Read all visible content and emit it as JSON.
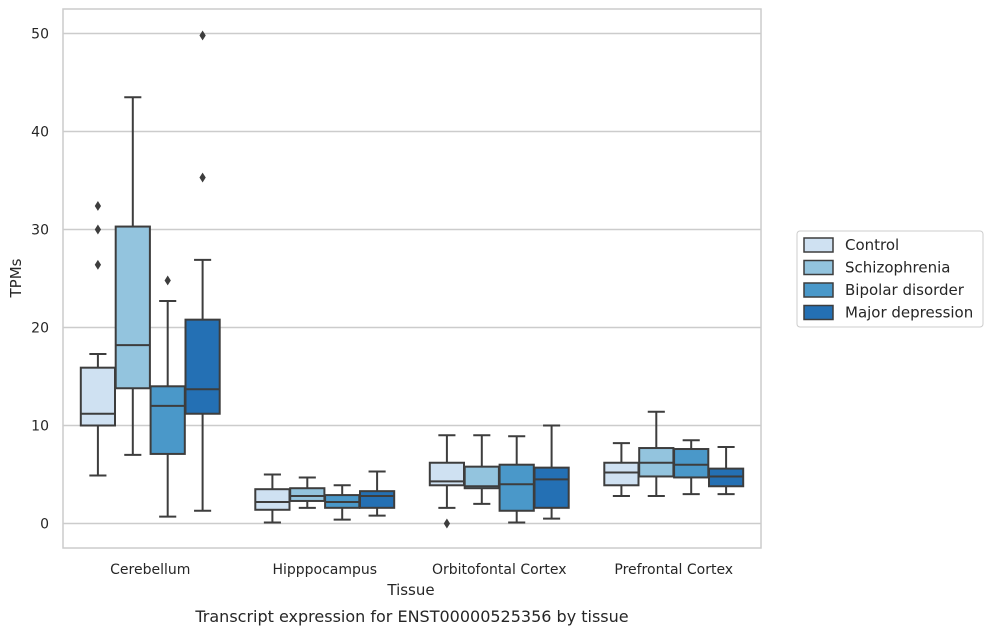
{
  "chart_data": {
    "type": "boxplot",
    "caption": "Transcript expression for ENST00000525356 by tissue",
    "xlabel": "Tissue",
    "ylabel": "TPMs",
    "ylim": [
      -2.5,
      52.5
    ],
    "yticks": [
      0,
      10,
      20,
      30,
      40,
      50
    ],
    "grid": true,
    "legend_position": "right",
    "categories": [
      "Cerebellum",
      "Hipppocampus",
      "Orbitofontal Cortex",
      "Prefrontal Cortex"
    ],
    "series": [
      {
        "name": "Control",
        "color": "#cfe1f2",
        "boxes": [
          {
            "whislo": 4.9,
            "q1": 10.0,
            "med": 11.2,
            "q3": 15.9,
            "whishi": 17.3,
            "fliers": [
              26.4,
              30.0,
              32.4
            ]
          },
          {
            "whislo": 0.1,
            "q1": 1.4,
            "med": 2.2,
            "q3": 3.5,
            "whishi": 5.0,
            "fliers": []
          },
          {
            "whislo": 1.6,
            "q1": 3.9,
            "med": 4.3,
            "q3": 6.2,
            "whishi": 9.0,
            "fliers": [
              0.0
            ]
          },
          {
            "whislo": 2.8,
            "q1": 3.9,
            "med": 5.2,
            "q3": 6.2,
            "whishi": 8.2,
            "fliers": []
          }
        ]
      },
      {
        "name": "Schizophrenia",
        "color": "#93c4de",
        "boxes": [
          {
            "whislo": 7.0,
            "q1": 13.8,
            "med": 18.2,
            "q3": 30.3,
            "whishi": 43.5,
            "fliers": []
          },
          {
            "whislo": 1.6,
            "q1": 2.3,
            "med": 2.8,
            "q3": 3.6,
            "whishi": 4.7,
            "fliers": []
          },
          {
            "whislo": 2.0,
            "q1": 3.6,
            "med": 3.8,
            "q3": 5.8,
            "whishi": 9.0,
            "fliers": []
          },
          {
            "whislo": 2.8,
            "q1": 4.8,
            "med": 6.2,
            "q3": 7.7,
            "whishi": 11.4,
            "fliers": []
          }
        ]
      },
      {
        "name": "Bipolar disorder",
        "color": "#4a98c9",
        "boxes": [
          {
            "whislo": 0.7,
            "q1": 7.1,
            "med": 12.0,
            "q3": 14.0,
            "whishi": 22.7,
            "fliers": [
              24.8
            ]
          },
          {
            "whislo": 0.4,
            "q1": 1.6,
            "med": 2.2,
            "q3": 2.9,
            "whishi": 3.9,
            "fliers": []
          },
          {
            "whislo": 0.1,
            "q1": 1.3,
            "med": 4.0,
            "q3": 6.0,
            "whishi": 8.9,
            "fliers": []
          },
          {
            "whislo": 3.0,
            "q1": 4.7,
            "med": 6.0,
            "q3": 7.6,
            "whishi": 8.5,
            "fliers": []
          }
        ]
      },
      {
        "name": "Major depression",
        "color": "#2470b4",
        "boxes": [
          {
            "whislo": 1.3,
            "q1": 11.2,
            "med": 13.7,
            "q3": 20.8,
            "whishi": 26.9,
            "fliers": [
              35.3,
              49.8
            ]
          },
          {
            "whislo": 0.8,
            "q1": 1.6,
            "med": 2.8,
            "q3": 3.3,
            "whishi": 5.3,
            "fliers": []
          },
          {
            "whislo": 0.5,
            "q1": 1.6,
            "med": 4.5,
            "q3": 5.7,
            "whishi": 10.0,
            "fliers": []
          },
          {
            "whislo": 3.0,
            "q1": 3.8,
            "med": 4.8,
            "q3": 5.6,
            "whishi": 7.8,
            "fliers": []
          }
        ]
      }
    ]
  }
}
